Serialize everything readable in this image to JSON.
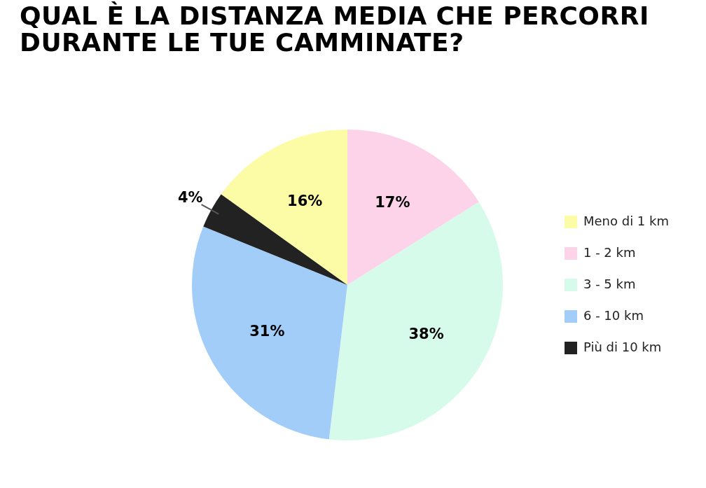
{
  "chart_data": {
    "type": "pie",
    "title": "QUAL È LA DISTANZA MEDIA CHE PERCORRI DURANTE LE TUE CAMMINATE?",
    "categories": [
      "Meno di 1 km",
      "1 - 2 km",
      "3 - 5 km",
      "6 - 10 km",
      "Più di 10 km"
    ],
    "values": [
      16,
      17,
      38,
      31,
      4
    ],
    "colors": [
      "#fdfca6",
      "#fcd3e8",
      "#d6fbeb",
      "#a2cdf8",
      "#222222"
    ],
    "value_labels": [
      "16%",
      "17%",
      "38%",
      "31%",
      "4%"
    ],
    "legend": "right"
  }
}
